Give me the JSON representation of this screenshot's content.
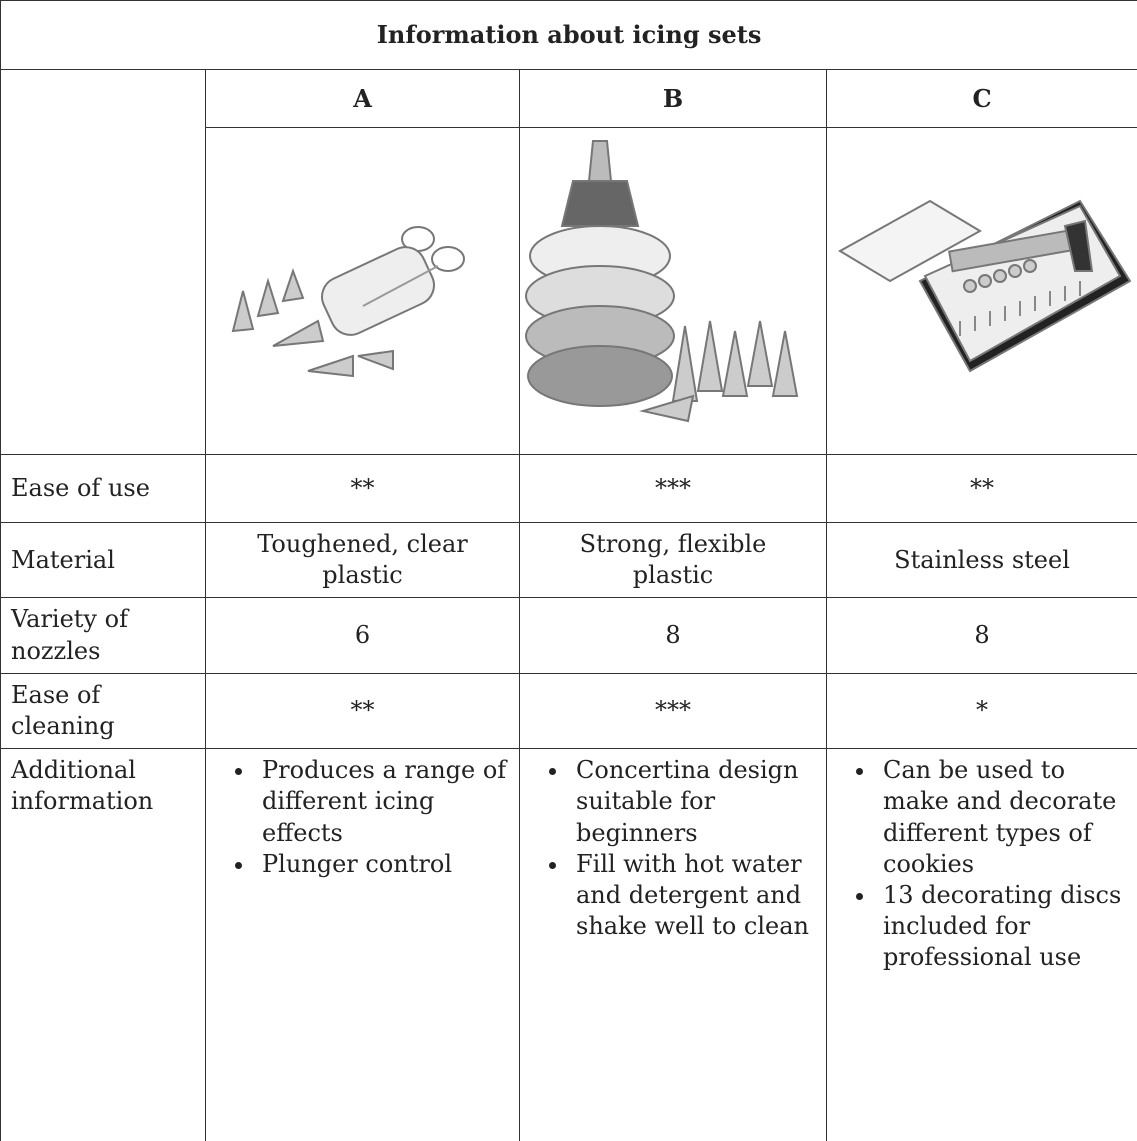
{
  "table": {
    "title": "Information about icing sets",
    "columns": [
      "A",
      "B",
      "C"
    ],
    "rows": [
      {
        "label": "Ease of use",
        "cells": [
          "**",
          "***",
          "**"
        ]
      },
      {
        "label": "Material",
        "cells": [
          "Toughened, clear plastic",
          "Strong, flexible plastic",
          "Stainless steel"
        ]
      },
      {
        "label": "Variety of nozzles",
        "cells": [
          6,
          8,
          8
        ]
      },
      {
        "label": "Ease of cleaning",
        "cells": [
          "**",
          "***",
          "*"
        ]
      },
      {
        "label": "Additional information",
        "cells": [
          [
            "Produces a range of different icing effects",
            "Plunger control"
          ],
          [
            "Concertina design suitable for beginners",
            "Fill with hot water and detergent and shake well to clean"
          ],
          [
            "Can be used to make and decorate different types of cookies",
            "13 decorating discs included for professional use"
          ]
        ]
      }
    ]
  }
}
